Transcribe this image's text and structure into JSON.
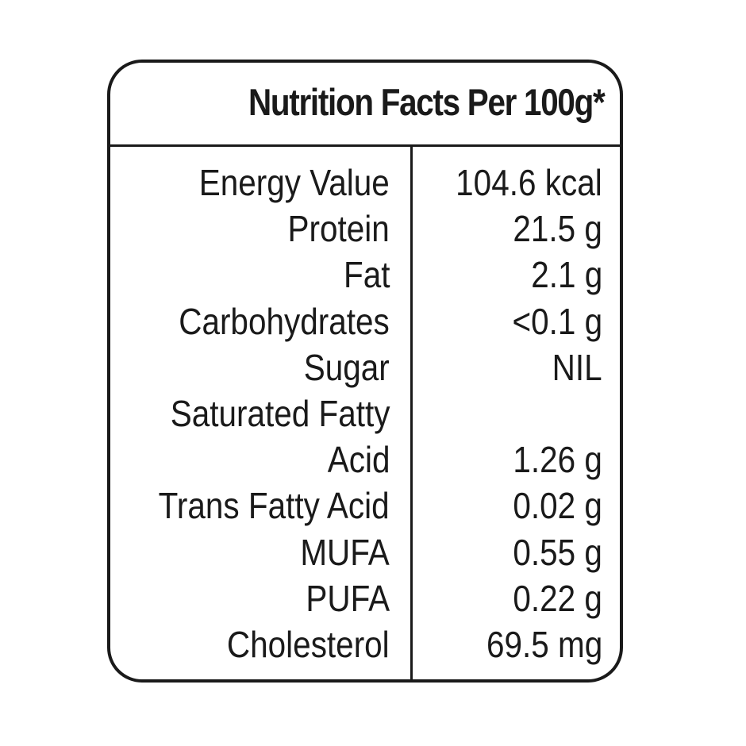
{
  "title": "Nutrition Facts Per 100g*",
  "rows": [
    {
      "label": "Energy Value",
      "value": "104.6 kcal"
    },
    {
      "label": "Protein",
      "value": "21.5 g"
    },
    {
      "label": "Fat",
      "value": "2.1 g"
    },
    {
      "label": "Carbohydrates",
      "value": "<0.1 g"
    },
    {
      "label": "Sugar",
      "value": "NIL"
    },
    {
      "label": "Saturated Fatty",
      "value": ""
    },
    {
      "label": "Acid",
      "value": "1.26 g"
    },
    {
      "label": "Trans Fatty Acid",
      "value": "0.02 g"
    },
    {
      "label": "MUFA",
      "value": "0.55 g"
    },
    {
      "label": "PUFA",
      "value": "0.22 g"
    },
    {
      "label": "Cholesterol",
      "value": "69.5 mg"
    }
  ]
}
